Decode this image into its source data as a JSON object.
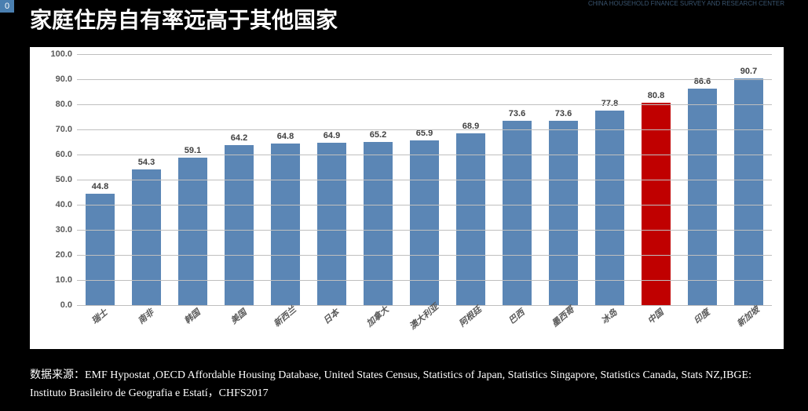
{
  "slide_number": "0",
  "title": "家庭住房自有率远高于其他国家",
  "logo_text": "CHINA HOUSEHOLD FINANCE\nSURVEY AND RESEARCH CENTER",
  "chart": {
    "type": "bar",
    "ylim": [
      0,
      100
    ],
    "ytick_step": 10,
    "y_decimals": 1,
    "background_color": "#ffffff",
    "grid_color": "#bfbfbf",
    "default_bar_color": "#5b86b5",
    "highlight_bar_color": "#c00000",
    "value_text_color": "#404040",
    "axis_text_color": "#595959",
    "label_fontsize": 11,
    "value_fontsize": 11,
    "bar_width_ratio": 0.62,
    "categories": [
      "瑞士",
      "南非",
      "韩国",
      "美国",
      "新西兰",
      "日本",
      "加拿大",
      "澳大利亚",
      "阿根廷",
      "巴西",
      "墨西哥",
      "冰岛",
      "中国",
      "印度",
      "新加坡"
    ],
    "values": [
      44.8,
      54.3,
      59.1,
      64.2,
      64.8,
      64.9,
      65.2,
      65.9,
      68.9,
      73.6,
      73.6,
      77.8,
      80.8,
      86.6,
      90.7
    ],
    "highlight_index": 12
  },
  "footer": {
    "label": "数据来源：",
    "source": "EMF Hypostat ,OECD Affordable Housing Database, United States Census, Statistics of Japan, Statistics Singapore, Statistics Canada, Stats NZ,IBGE: Instituto Brasileiro de Geografia e Estatí，CHFS2017"
  }
}
